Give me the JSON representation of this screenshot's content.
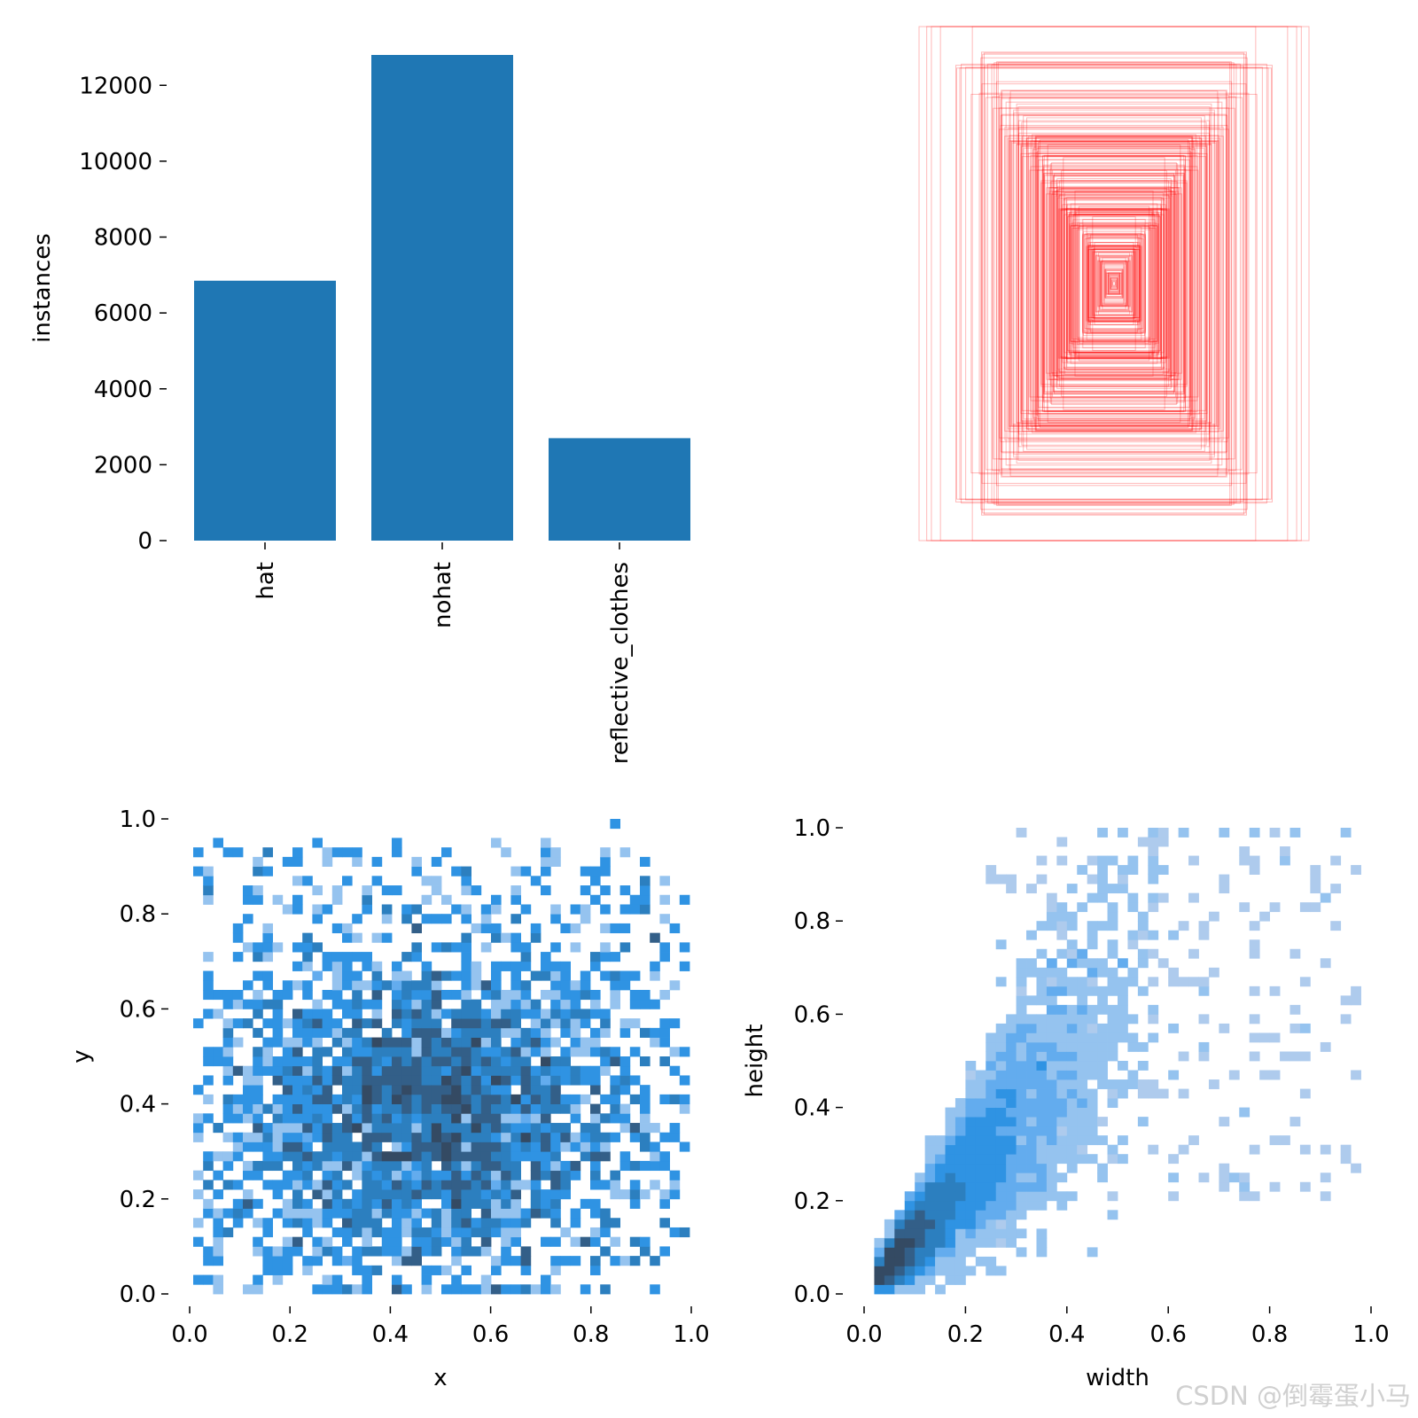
{
  "watermark": "CSDN @倒霉蛋小马",
  "chart_data": [
    {
      "type": "bar",
      "categories": [
        "hat",
        "nohat",
        "reflective_clothes"
      ],
      "values": [
        6850,
        12800,
        2700
      ],
      "xlabel": "",
      "ylabel": "instances",
      "ylim": [
        0,
        12800
      ],
      "yticks": [
        "0",
        "2000",
        "4000",
        "6000",
        "8000",
        "10000",
        "12000"
      ],
      "color": "#1f77b4",
      "grid": false
    },
    {
      "type": "box_overlay",
      "description_values": "label bounding boxes drawn centered at a common origin",
      "boxes_wh": [
        [
          0.38,
          0.56
        ],
        [
          0.28,
          0.4
        ],
        [
          0.18,
          0.3
        ],
        [
          0.1,
          0.16
        ],
        [
          0.05,
          0.08
        ],
        [
          0.42,
          0.58
        ],
        [
          0.24,
          0.31
        ],
        [
          0.14,
          0.22
        ],
        [
          0.32,
          0.47
        ],
        [
          0.2,
          0.36
        ],
        [
          0.08,
          0.12
        ],
        [
          0.36,
          0.43
        ],
        [
          0.26,
          0.49
        ],
        [
          0.16,
          0.25
        ],
        [
          0.4,
          0.51
        ],
        [
          0.12,
          0.19
        ],
        [
          0.3,
          0.36
        ],
        [
          0.22,
          0.28
        ],
        [
          0.34,
          0.54
        ],
        [
          0.06,
          0.1
        ],
        [
          0.02,
          0.03
        ],
        [
          0.27,
          0.44
        ],
        [
          0.19,
          0.21
        ],
        [
          0.11,
          0.26
        ]
      ],
      "color": "#ff0000",
      "grid": false
    },
    {
      "type": "heatmap",
      "xlabel": "x",
      "ylabel": "y",
      "xlim": [
        0,
        1
      ],
      "ylim": [
        0,
        1
      ],
      "xticks": [
        "0.0",
        "0.2",
        "0.4",
        "0.6",
        "0.8",
        "1.0"
      ],
      "yticks": [
        "0.0",
        "0.2",
        "0.4",
        "0.6",
        "0.8",
        "1.0"
      ],
      "bins": 50,
      "center": [
        0.48,
        0.38
      ],
      "spread": [
        0.32,
        0.25
      ],
      "colors": [
        "#aecbed",
        "#95c3ef",
        "#63acee",
        "#2f93e3",
        "#2c7fbf",
        "#335f88",
        "#344a63"
      ],
      "grid": false
    },
    {
      "type": "heatmap",
      "xlabel": "width",
      "ylabel": "height",
      "xlim": [
        0,
        1
      ],
      "ylim": [
        0,
        1
      ],
      "xticks": [
        "0.0",
        "0.2",
        "0.4",
        "0.6",
        "0.8",
        "1.0"
      ],
      "yticks": [
        "0.0",
        "0.2",
        "0.4",
        "0.6",
        "0.8",
        "1.0"
      ],
      "bins": 50,
      "colors": [
        "#aecbed",
        "#95c3ef",
        "#63acee",
        "#2f93e3",
        "#2c7fbf",
        "#335f88",
        "#344a63"
      ],
      "grid": false
    }
  ]
}
